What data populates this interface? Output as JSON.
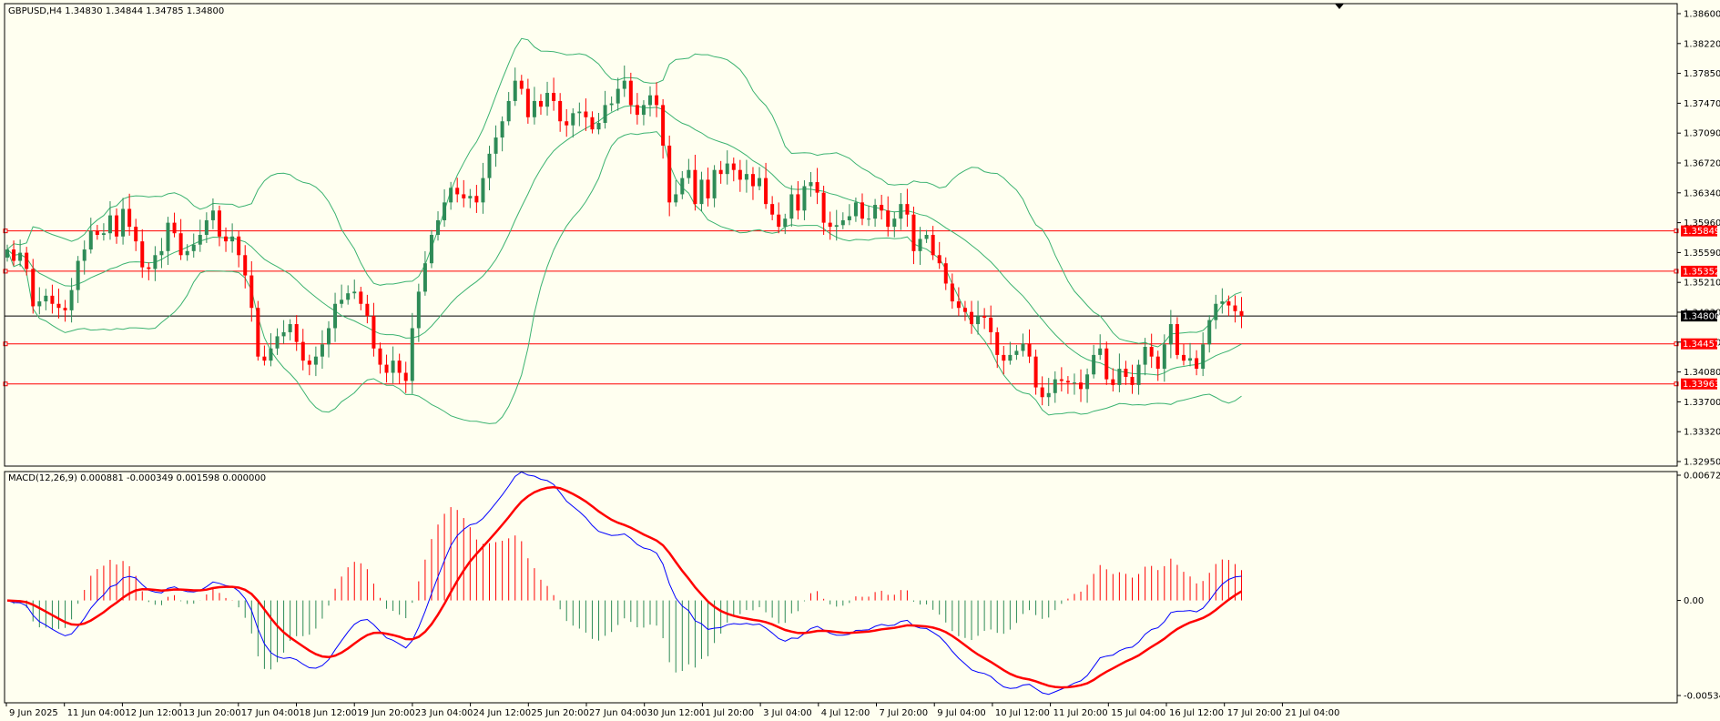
{
  "header": {
    "symbol_text": "GBPUSD,H4  1.34830 1.34844 1.34785 1.34800"
  },
  "macd_header": {
    "text": "MACD(12,26,9) 0.000881 -0.000349 0.001598 0.000000"
  },
  "colors": {
    "background": "#FFFFF0",
    "bull_candle": "#2E8B57",
    "bear_candle": "#FF0000",
    "bands": "#3CB371",
    "levels": "#FF0000",
    "current_price_line": "#000000",
    "macd_line": "#0000FF",
    "signal_line": "#FF0000"
  },
  "chart_data": [
    {
      "type": "candlestick",
      "name": "GBPUSD,H4",
      "ylim": [
        1.3295,
        1.3865
      ],
      "y_ticks": [
        "1.38600",
        "1.38220",
        "1.37850",
        "1.37470",
        "1.37090",
        "1.36720",
        "1.36340",
        "1.35960",
        "1.35590",
        "1.35210",
        "1.34830",
        "1.34450",
        "1.34080",
        "1.33700",
        "1.33320",
        "1.32950"
      ],
      "price_boxes": [
        {
          "label": "1.35849",
          "value": 1.35849,
          "style": "level"
        },
        {
          "label": "1.35352",
          "value": 1.35352,
          "style": "level"
        },
        {
          "label": "1.34800",
          "value": 1.348,
          "style": "current"
        },
        {
          "label": "1.34457",
          "value": 1.34457,
          "style": "level"
        },
        {
          "label": "1.33963",
          "value": 1.33963,
          "style": "level"
        }
      ],
      "x_labels": [
        "9 Jun 2025",
        "11 Jun 04:00",
        "12 Jun 12:00",
        "13 Jun 20:00",
        "17 Jun 04:00",
        "18 Jun 12:00",
        "19 Jun 20:00",
        "23 Jun 04:00",
        "24 Jun 12:00",
        "25 Jun 20:00",
        "27 Jun 04:00",
        "30 Jun 12:00",
        "1 Jul 20:00",
        "3 Jul 04:00",
        "4 Jul 12:00",
        "7 Jul 20:00",
        "9 Jul 04:00",
        "10 Jul 12:00",
        "11 Jul 20:00",
        "15 Jul 04:00",
        "16 Jul 12:00",
        "17 Jul 20:00",
        "21 Jul 04:00"
      ],
      "closes": [
        1.3562,
        1.3548,
        1.3558,
        1.3538,
        1.3492,
        1.3498,
        1.3505,
        1.3495,
        1.349,
        1.3487,
        1.3512,
        1.3548,
        1.3562,
        1.3585,
        1.358,
        1.3582,
        1.3604,
        1.3578,
        1.3612,
        1.359,
        1.3572,
        1.354,
        1.3538,
        1.3555,
        1.356,
        1.3595,
        1.3582,
        1.3555,
        1.356,
        1.3568,
        1.358,
        1.3598,
        1.361,
        1.3578,
        1.3572,
        1.3578,
        1.3555,
        1.353,
        1.349,
        1.343,
        1.3425,
        1.344,
        1.3455,
        1.346,
        1.347,
        1.3448,
        1.3425,
        1.342,
        1.343,
        1.3445,
        1.3465,
        1.3495,
        1.35,
        1.3508,
        1.351,
        1.3495,
        1.348,
        1.344,
        1.342,
        1.341,
        1.3425,
        1.341,
        1.34,
        1.3465,
        1.351,
        1.3545,
        1.358,
        1.3598,
        1.362,
        1.3638,
        1.363,
        1.3625,
        1.3628,
        1.362,
        1.365,
        1.368,
        1.37,
        1.372,
        1.3745,
        1.377,
        1.376,
        1.3725,
        1.3745,
        1.3738,
        1.3755,
        1.3745,
        1.372,
        1.3715,
        1.373,
        1.3732,
        1.3725,
        1.371,
        1.3718,
        1.374,
        1.3742,
        1.376,
        1.377,
        1.374,
        1.3728,
        1.374,
        1.3752,
        1.374,
        1.369,
        1.362,
        1.363,
        1.365,
        1.366,
        1.3618,
        1.3648,
        1.3625,
        1.366,
        1.3655,
        1.3668,
        1.366,
        1.3648,
        1.3655,
        1.364,
        1.365,
        1.3618,
        1.3605,
        1.359,
        1.36,
        1.363,
        1.361,
        1.364,
        1.3645,
        1.3632,
        1.3595,
        1.359,
        1.3592,
        1.3598,
        1.3603,
        1.362,
        1.36,
        1.36,
        1.3617,
        1.361,
        1.359,
        1.36,
        1.3618,
        1.3605,
        1.356,
        1.3575,
        1.358,
        1.3555,
        1.3545,
        1.352,
        1.3498,
        1.349,
        1.3485,
        1.347,
        1.348,
        1.3478,
        1.346,
        1.3432,
        1.3425,
        1.3432,
        1.3437,
        1.3446,
        1.343,
        1.3392,
        1.338,
        1.3385,
        1.3402,
        1.34,
        1.3398,
        1.3398,
        1.339,
        1.3408,
        1.3432,
        1.344,
        1.3402,
        1.3395,
        1.3415,
        1.3405,
        1.3395,
        1.342,
        1.3442,
        1.343,
        1.3415,
        1.3445,
        1.347,
        1.3432,
        1.3425,
        1.3428,
        1.3415,
        1.3445,
        1.3475,
        1.3495,
        1.3498,
        1.3493,
        1.3486,
        1.348
      ]
    },
    {
      "type": "macd",
      "name": "MACD(12,26,9)",
      "ylim": [
        -0.005342,
        0.006727
      ],
      "y_ticks": [
        "0.006727",
        "0.00",
        "-0.005342"
      ]
    }
  ]
}
